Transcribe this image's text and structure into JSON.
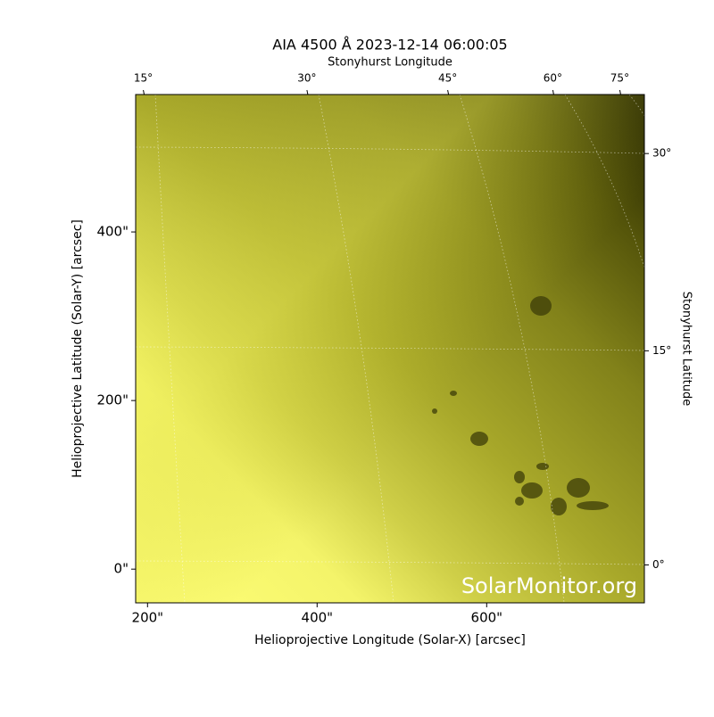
{
  "chart_data": {
    "type": "image",
    "title": "AIA 4500 Å 2023-12-14 06:00:05",
    "xlabel": "Helioprojective Longitude (Solar-X) [arcsec]",
    "ylabel": "Helioprojective Latitude (Solar-Y) [arcsec]",
    "x2label": "Stonyhurst Longitude",
    "y2label": "Stonyhurst Latitude",
    "watermark": "SolarMonitor.org",
    "xlim": [
      186,
      786
    ],
    "ylim": [
      -40,
      563
    ],
    "xticks": [
      {
        "value": 200,
        "label": "200\""
      },
      {
        "value": 400,
        "label": "400\""
      },
      {
        "value": 600,
        "label": "600\""
      }
    ],
    "yticks": [
      {
        "value": 0,
        "label": "0\""
      },
      {
        "value": 200,
        "label": "200\""
      },
      {
        "value": 400,
        "label": "400\""
      }
    ],
    "x2ticks": [
      {
        "value": 195,
        "label": "15°"
      },
      {
        "value": 388,
        "label": "30°"
      },
      {
        "value": 554,
        "label": "45°"
      },
      {
        "value": 678,
        "label": "60°"
      },
      {
        "value": 757,
        "label": "75°"
      }
    ],
    "y2ticks": [
      {
        "value": 493,
        "label": "30°"
      },
      {
        "value": 259,
        "label": "15°"
      },
      {
        "value": 5,
        "label": "0°"
      }
    ]
  }
}
